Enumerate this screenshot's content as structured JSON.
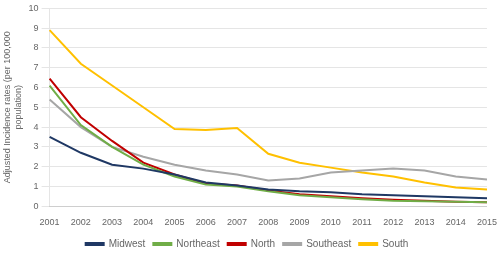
{
  "chart_data": {
    "type": "line",
    "categories": [
      2001,
      2002,
      2003,
      2004,
      2005,
      2006,
      2007,
      2008,
      2009,
      2010,
      2011,
      2012,
      2013,
      2014,
      2015
    ],
    "ylabel": "Adjusted Incidence rates (per 100,000\npopulation)",
    "series": [
      {
        "name": "Midwest",
        "color": "#1F3864",
        "values": [
          3.5,
          2.7,
          2.1,
          1.9,
          1.6,
          1.2,
          1.05,
          0.85,
          0.75,
          0.7,
          0.6,
          0.55,
          0.5,
          0.45,
          0.4
        ]
      },
      {
        "name": "Northeast",
        "color": "#70AD47",
        "values": [
          6.1,
          4.1,
          3.0,
          2.1,
          1.5,
          1.1,
          1.0,
          0.75,
          0.55,
          0.45,
          0.35,
          0.28,
          0.25,
          0.22,
          0.2
        ]
      },
      {
        "name": "North",
        "color": "#C00000",
        "values": [
          6.45,
          4.5,
          3.3,
          2.2,
          1.6,
          1.15,
          1.05,
          0.8,
          0.6,
          0.5,
          0.4,
          0.32,
          0.27,
          0.23,
          0.2
        ]
      },
      {
        "name": "Southeast",
        "color": "#A6A6A6",
        "values": [
          5.4,
          4.0,
          3.0,
          2.5,
          2.1,
          1.8,
          1.6,
          1.3,
          1.4,
          1.7,
          1.8,
          1.9,
          1.8,
          1.5,
          1.35
        ]
      },
      {
        "name": "South",
        "color": "#FFC000",
        "values": [
          8.9,
          7.2,
          6.1,
          5.0,
          3.9,
          3.85,
          3.95,
          2.65,
          2.2,
          1.95,
          1.7,
          1.5,
          1.2,
          0.95,
          0.85
        ]
      }
    ],
    "ylim": [
      0,
      10
    ],
    "yticks": [
      0,
      1,
      2,
      3,
      4,
      5,
      6,
      7,
      8,
      9,
      10
    ],
    "grid": "y",
    "legend": "bottom"
  }
}
